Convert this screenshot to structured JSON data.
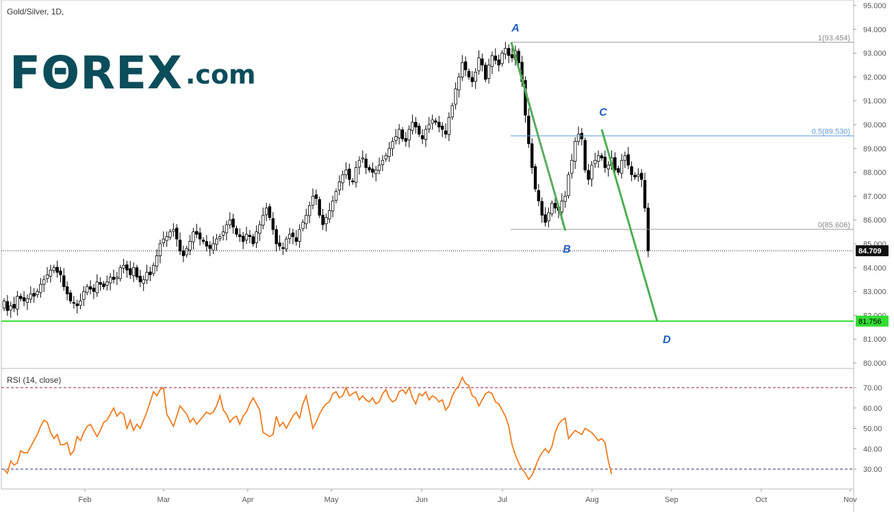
{
  "title": "Gold/Silver, 1D,",
  "logo": {
    "main": "FΘREX",
    "suffix": ".com"
  },
  "rsi_title": "RSI (14, close)",
  "colors": {
    "support": "#33dd33",
    "pattern": "#4caf50",
    "fib_mid": "#5b9bd5",
    "fib_line": "#999999",
    "rsi": "#f07b1e",
    "label": "#1f5fbf",
    "price_tag_bg": "#111111"
  },
  "chart_data": [
    {
      "type": "candlestick",
      "title": "Gold/Silver, 1D,",
      "ylim": [
        80.0,
        95.0
      ],
      "yticks": [
        "95.000",
        "94.000",
        "93.000",
        "92.000",
        "91.000",
        "90.000",
        "89.000",
        "88.000",
        "87.000",
        "86.000",
        "85.000",
        "84.000",
        "83.000",
        "82.000",
        "81.000",
        "80.000"
      ],
      "xticks": [
        "Feb",
        "Mar",
        "Apr",
        "May",
        "Jun",
        "Jul",
        "Aug",
        "Sep",
        "Oct",
        "Nov"
      ],
      "last_price_label": "84.709",
      "last_price": 84.709,
      "support_label": "81.756",
      "support": 81.756,
      "fib_levels": [
        {
          "label": "1(93.454)",
          "value": 93.454
        },
        {
          "label": "0.5(89.530)",
          "value": 89.53
        },
        {
          "label": "0(85.606)",
          "value": 85.606
        }
      ],
      "pattern_points": [
        {
          "label": "A",
          "value": 93.454
        },
        {
          "label": "B",
          "value": 85.55
        },
        {
          "label": "C",
          "value": 89.8
        },
        {
          "label": "D",
          "value": 81.756
        }
      ],
      "closes": [
        82.6,
        82.2,
        82.4,
        82.3,
        82.8,
        82.7,
        82.6,
        82.7,
        82.9,
        82.8,
        83.0,
        83.3,
        83.5,
        83.7,
        83.9,
        84.0,
        83.8,
        83.7,
        83.2,
        82.9,
        82.6,
        82.5,
        82.4,
        82.6,
        83.0,
        83.2,
        83.1,
        83.0,
        83.4,
        83.3,
        83.2,
        83.4,
        83.6,
        83.5,
        83.6,
        84.0,
        84.1,
        83.9,
        83.7,
        84.0,
        83.6,
        83.4,
        83.5,
        83.8,
        83.7,
        84.1,
        84.5,
        85.0,
        85.2,
        85.3,
        85.5,
        85.6,
        85.2,
        84.7,
        84.5,
        84.8,
        85.1,
        85.5,
        85.4,
        85.2,
        85.1,
        84.9,
        84.8,
        85.0,
        85.2,
        85.3,
        85.5,
        85.8,
        86.0,
        85.7,
        85.4,
        85.3,
        85.1,
        85.4,
        85.3,
        85.0,
        85.5,
        85.8,
        86.2,
        86.5,
        86.1,
        85.6,
        85.0,
        84.9,
        84.8,
        85.2,
        85.4,
        85.3,
        85.1,
        85.6,
        85.9,
        86.2,
        86.6,
        87.0,
        86.9,
        86.2,
        85.8,
        86.1,
        86.4,
        86.8,
        87.2,
        87.6,
        87.9,
        88.1,
        87.7,
        87.6,
        88.2,
        88.5,
        88.6,
        88.2,
        88.1,
        88.0,
        88.1,
        88.3,
        88.5,
        88.7,
        89.0,
        89.3,
        89.5,
        89.8,
        89.4,
        89.3,
        89.8,
        90.1,
        89.9,
        89.6,
        89.4,
        89.8,
        90.0,
        90.2,
        90.1,
        89.9,
        89.8,
        89.6,
        90.3,
        90.8,
        91.5,
        92.0,
        92.6,
        92.3,
        92.0,
        91.8,
        92.2,
        92.8,
        92.5,
        91.9,
        92.5,
        92.9,
        92.7,
        92.5,
        93.0,
        93.2,
        92.9,
        92.8,
        93.1,
        92.6,
        91.8,
        90.4,
        89.2,
        88.2,
        87.3,
        86.8,
        86.2,
        85.9,
        86.3,
        86.7,
        86.5,
        86.4,
        86.8,
        87.0,
        87.9,
        88.5,
        89.3,
        89.6,
        89.4,
        88.1,
        87.7,
        88.3,
        88.5,
        88.7,
        88.6,
        88.2,
        88.3,
        88.6,
        88.1,
        88.0,
        88.5,
        88.7,
        88.3,
        87.9,
        87.8,
        87.9,
        87.7,
        86.5,
        84.709
      ],
      "rsi": {
        "title": "RSI (14, close)",
        "ylim": [
          20,
          80
        ],
        "yticks": [
          "70.00",
          "60.00",
          "50.00",
          "40.00",
          "30.00"
        ],
        "bands": [
          70,
          30
        ],
        "values": [
          30,
          28,
          34,
          32,
          33,
          39,
          38,
          38,
          41,
          44,
          47,
          51,
          54,
          53,
          48,
          45,
          47,
          42,
          42,
          43,
          37,
          39,
          46,
          44,
          48,
          51,
          52,
          49,
          46,
          49,
          53,
          54,
          57,
          60,
          56,
          58,
          57,
          50,
          54,
          49,
          52,
          50,
          54,
          58,
          63,
          68,
          66,
          69,
          70,
          57,
          54,
          51,
          56,
          61,
          59,
          57,
          53,
          55,
          52,
          54,
          56,
          58,
          57,
          58,
          61,
          66,
          59,
          57,
          53,
          55,
          56,
          52,
          56,
          58,
          62,
          65,
          62,
          59,
          48,
          47,
          46,
          47,
          56,
          51,
          53,
          50,
          53,
          56,
          58,
          55,
          62,
          66,
          58,
          50,
          53,
          57,
          60,
          62,
          63,
          67,
          68,
          65,
          66,
          70,
          66,
          67,
          68,
          64,
          66,
          64,
          63,
          65,
          62,
          63,
          67,
          69,
          65,
          63,
          64,
          68,
          69,
          67,
          70,
          65,
          62,
          67,
          66,
          68,
          64,
          66,
          65,
          63,
          64,
          59,
          61,
          66,
          69,
          71,
          75,
          72,
          71,
          66,
          65,
          61,
          64,
          67,
          68,
          67,
          63,
          62,
          59,
          56,
          51,
          42,
          37,
          33,
          30,
          28,
          25,
          27,
          31,
          35,
          38,
          40,
          38,
          41,
          48,
          52,
          54,
          55,
          45,
          47,
          49,
          48,
          47,
          50,
          49,
          48,
          46,
          44,
          45,
          43,
          34,
          27.5
        ]
      }
    }
  ]
}
